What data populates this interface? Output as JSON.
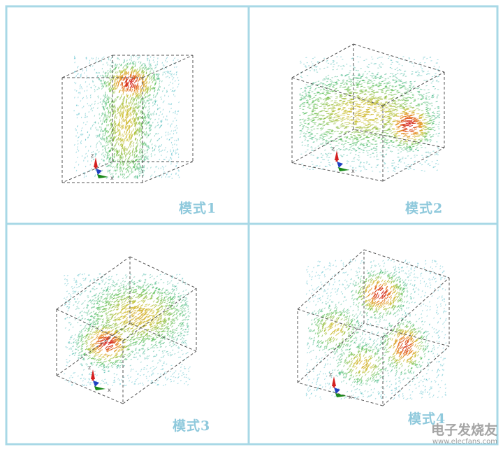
{
  "panels": [
    {
      "label": "模式1"
    },
    {
      "label": "模式2"
    },
    {
      "label": "模式3"
    },
    {
      "label": "模式4"
    }
  ],
  "axis_labels": {
    "z": "z",
    "x": "x"
  },
  "watermark": {
    "text": "电子发烧友",
    "url": "www.elecfans.com"
  },
  "colors": {
    "border": "#a8d8e6",
    "label": "#8fc9dc",
    "hot": "#d42020",
    "warm": "#e8a020",
    "mid": "#3fb53f",
    "cool": "#2fb0c0"
  }
}
